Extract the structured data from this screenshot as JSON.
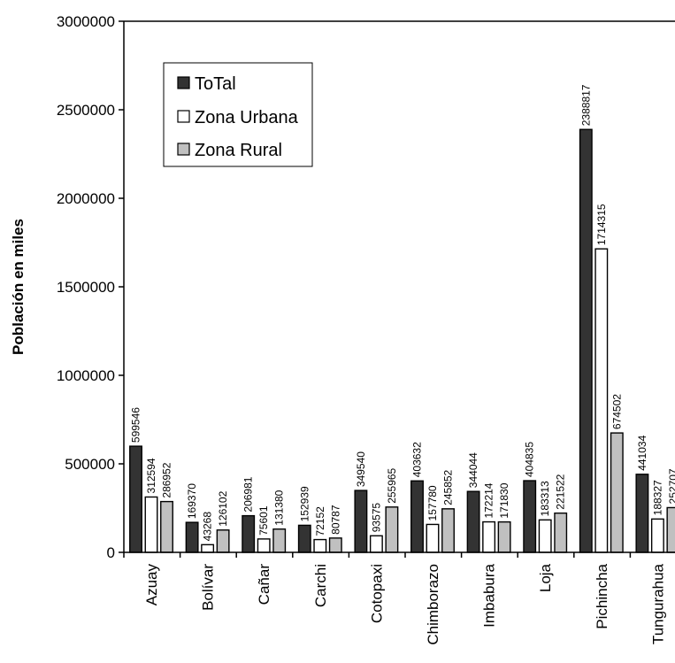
{
  "chart_data": {
    "type": "bar",
    "title": "",
    "xlabel": "",
    "ylabel": "Población en miles",
    "ylim": [
      0,
      3000000
    ],
    "yticks": [
      0,
      500000,
      1000000,
      1500000,
      2000000,
      2500000,
      3000000
    ],
    "ytick_labels": [
      "0",
      "500000",
      "1000000",
      "1500000",
      "2000000",
      "2500000",
      "3000000"
    ],
    "grid": false,
    "legend_position": "top-left",
    "categories": [
      "Azuay",
      "Bolívar",
      "Cañar",
      "Carchi",
      "Cotopaxi",
      "Chimborazo",
      "Imbabura",
      "Loja",
      "Pichincha",
      "Tungurahua"
    ],
    "series": [
      {
        "name": "ToTal",
        "color": "#333333",
        "values": [
          599546,
          169370,
          206981,
          152939,
          349540,
          403632,
          344044,
          404835,
          2388817,
          441034
        ]
      },
      {
        "name": "Zona Urbana",
        "color": "#ffffff",
        "values": [
          312594,
          43268,
          75601,
          72152,
          93575,
          157780,
          172214,
          183313,
          1714315,
          188327
        ]
      },
      {
        "name": "Zona Rural",
        "color": "#c0c0c0",
        "values": [
          286952,
          126102,
          131380,
          80787,
          255965,
          245852,
          171830,
          221522,
          674502,
          252707
        ]
      }
    ]
  }
}
